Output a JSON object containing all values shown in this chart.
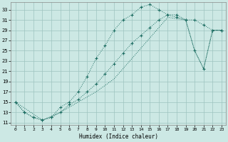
{
  "xlabel": "Humidex (Indice chaleur)",
  "bg_color": "#cce8e4",
  "line_color": "#1a6b60",
  "grid_color": "#9dc4bf",
  "xlim": [
    -0.5,
    23.5
  ],
  "ylim": [
    10.5,
    34.5
  ],
  "xticks": [
    0,
    1,
    2,
    3,
    4,
    5,
    6,
    7,
    8,
    9,
    10,
    11,
    12,
    13,
    14,
    15,
    16,
    17,
    18,
    19,
    20,
    21,
    22,
    23
  ],
  "yticks": [
    11,
    13,
    15,
    17,
    19,
    21,
    23,
    25,
    27,
    29,
    31,
    33
  ],
  "upper_x": [
    0,
    1,
    2,
    3,
    4,
    5,
    6,
    7,
    8,
    9,
    10,
    11,
    12,
    13,
    14,
    15,
    16,
    17,
    18,
    19,
    20,
    21,
    22,
    23
  ],
  "upper_y": [
    15.0,
    13.0,
    12.0,
    11.5,
    12.0,
    14.0,
    15.0,
    17.0,
    20.0,
    23.5,
    26.0,
    29.0,
    31.0,
    32.0,
    33.5,
    34.0,
    33.0,
    32.0,
    32.0,
    31.0,
    31.0,
    30.0,
    29.0,
    29.0
  ],
  "mid_x": [
    0,
    1,
    2,
    3,
    4,
    5,
    6,
    7,
    8,
    9,
    10,
    11,
    12,
    13,
    14,
    15,
    16,
    17,
    18,
    19,
    20,
    21,
    22,
    23
  ],
  "mid_y": [
    15.0,
    13.0,
    12.0,
    11.5,
    12.0,
    13.0,
    14.5,
    15.5,
    17.0,
    18.5,
    20.5,
    22.5,
    24.5,
    26.5,
    28.0,
    29.5,
    31.0,
    32.0,
    31.5,
    31.0,
    25.0,
    21.5,
    29.0,
    29.0
  ],
  "low_x": [
    0,
    3,
    5,
    7,
    9,
    11,
    13,
    15,
    17,
    19,
    20,
    21,
    22,
    23
  ],
  "low_y": [
    15.0,
    11.5,
    13.0,
    15.0,
    17.0,
    19.5,
    23.5,
    27.5,
    31.5,
    31.0,
    25.0,
    21.5,
    29.0,
    29.0
  ]
}
